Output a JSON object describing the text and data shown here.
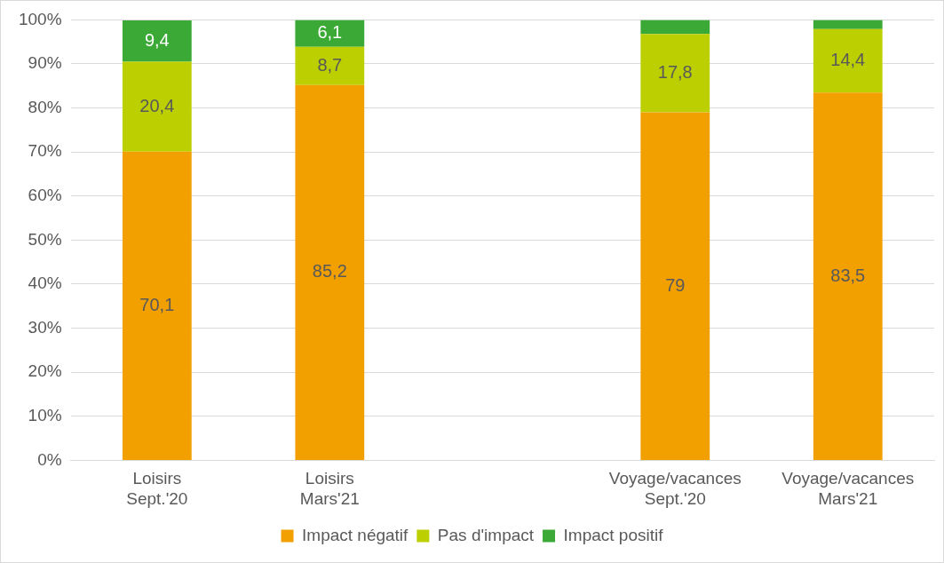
{
  "chart_data": {
    "type": "bar",
    "stacked": true,
    "categories": [
      "Loisirs\nSept.'20",
      "Loisirs\nMars'21",
      null,
      "Voyage/vacances\nSept.'20",
      "Voyage/vacances\nMars'21"
    ],
    "series": [
      {
        "name": "Impact négatif",
        "color": "#f29f00",
        "values": [
          70.1,
          85.2,
          null,
          79,
          83.5
        ],
        "value_labels": [
          "70,1",
          "85,2",
          null,
          "79",
          "83,5"
        ]
      },
      {
        "name": "Pas d'impact",
        "color": "#bccf00",
        "values": [
          20.4,
          8.7,
          null,
          17.8,
          14.4
        ],
        "value_labels": [
          "20,4",
          "8,7",
          null,
          "17,8",
          "14,4"
        ]
      },
      {
        "name": "Impact positif",
        "color": "#3aa935",
        "values": [
          9.4,
          6.1,
          null,
          3.2,
          2.1
        ],
        "value_labels": [
          "9,4",
          "6,1",
          null,
          null,
          null
        ]
      }
    ],
    "ylim": [
      0,
      100
    ],
    "yticks": [
      {
        "value": 0,
        "label": "0%"
      },
      {
        "value": 10,
        "label": "10%"
      },
      {
        "value": 20,
        "label": "20%"
      },
      {
        "value": 30,
        "label": "30%"
      },
      {
        "value": 40,
        "label": "40%"
      },
      {
        "value": 50,
        "label": "50%"
      },
      {
        "value": 60,
        "label": "60%"
      },
      {
        "value": 70,
        "label": "70%"
      },
      {
        "value": 80,
        "label": "80%"
      },
      {
        "value": 90,
        "label": "90%"
      },
      {
        "value": 100,
        "label": "100%"
      }
    ],
    "grid": "y",
    "legend": "bottom"
  }
}
